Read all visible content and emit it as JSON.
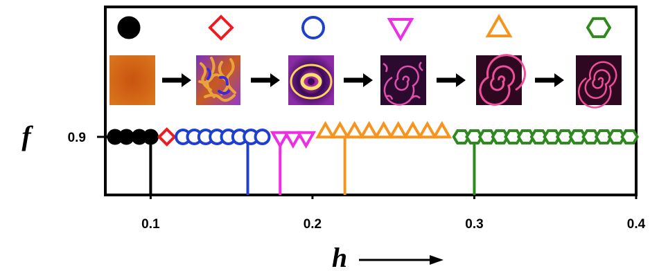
{
  "chart_data": {
    "type": "scatter",
    "xlabel": "h",
    "ylabel": "f",
    "xlim": [
      0.072,
      0.4
    ],
    "x_ticks": [
      {
        "value": 0.1,
        "label": "0.1"
      },
      {
        "value": 0.2,
        "label": "0.2"
      },
      {
        "value": 0.3,
        "label": "0.3"
      },
      {
        "value": 0.4,
        "label": "0.4"
      }
    ],
    "y_ticks": [
      {
        "value": 0.9,
        "label": "0.9"
      }
    ],
    "y_value": 0.9,
    "x_axis_arrow": true,
    "regimes": [
      {
        "marker": "filled-circle",
        "color": "#000000",
        "pattern": "homogeneous",
        "x": [
          0.078,
          0.085,
          0.093,
          0.1
        ]
      },
      {
        "marker": "diamond",
        "color": "#ed1c24",
        "pattern": "turbulent",
        "x": [
          0.11
        ]
      },
      {
        "marker": "circle",
        "color": "#1f3fcf",
        "pattern": "target",
        "x": [
          0.12,
          0.127,
          0.134,
          0.141,
          0.148,
          0.155,
          0.162,
          0.169
        ]
      },
      {
        "marker": "triangle-down",
        "color": "#ee2ee3",
        "pattern": "spiral-defects",
        "x": [
          0.18,
          0.188,
          0.196
        ]
      },
      {
        "marker": "triangle-up",
        "color": "#f7941d",
        "pattern": "spiral",
        "x": [
          0.208,
          0.217,
          0.226,
          0.235,
          0.244,
          0.253,
          0.262,
          0.271,
          0.28
        ]
      },
      {
        "marker": "hexagon",
        "color": "#2e8a1e",
        "pattern": "multi-armed-spiral",
        "x": [
          0.292,
          0.3,
          0.308,
          0.316,
          0.324,
          0.332,
          0.34,
          0.348,
          0.356,
          0.364,
          0.372,
          0.38,
          0.388,
          0.396
        ]
      }
    ],
    "transition_markers": [
      {
        "x": 0.1,
        "color": "#000000"
      },
      {
        "x": 0.16,
        "color": "#1f3fcf"
      },
      {
        "x": 0.18,
        "color": "#ee2ee3"
      },
      {
        "x": 0.22,
        "color": "#f7941d"
      },
      {
        "x": 0.3,
        "color": "#2e8a1e"
      }
    ],
    "insets": [
      {
        "legend_marker": "filled-circle",
        "color": "#000000",
        "pattern": "homogeneous"
      },
      {
        "legend_marker": "diamond",
        "color": "#ed1c24",
        "pattern": "turbulent"
      },
      {
        "legend_marker": "circle",
        "color": "#1f3fcf",
        "pattern": "target"
      },
      {
        "legend_marker": "triangle-down",
        "color": "#ee2ee3",
        "pattern": "spiral-defects"
      },
      {
        "legend_marker": "triangle-up",
        "color": "#f7941d",
        "pattern": "spiral"
      },
      {
        "legend_marker": "hexagon",
        "color": "#2e8a1e",
        "pattern": "multi-armed-spiral"
      }
    ]
  }
}
